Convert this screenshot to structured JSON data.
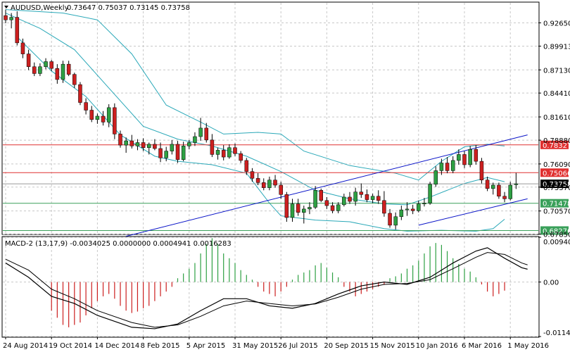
{
  "header": {
    "symbol": "AUDUSD,Weekly",
    "ohlc": "0.73647 0.75037 0.73145 0.73758",
    "macd_title": "MACD-2 (13,17,9) -0.0034025 0.0000000 0.0004941 0.0016283"
  },
  "colors": {
    "bull": "#2ea043",
    "bear": "#cc1f1f",
    "bands": "#2aa8b8",
    "channel": "#0a14c8",
    "resistance": "#e03030",
    "support": "#3aa05a",
    "grid": "#c8c8c8"
  },
  "chart_data": [
    {
      "type": "candlestick",
      "title": "AUDUSD,Weekly",
      "ylim": [
        0.679,
        0.95
      ],
      "y_ticks": [
        "0.92650",
        "0.89913",
        "0.87130",
        "0.84410",
        "0.81610",
        "0.78880",
        "0.76090",
        "0.73370",
        "0.70570",
        "0.67850"
      ],
      "x_ticks": [
        "24 Aug 2014",
        "19 Oct 2014",
        "14 Dec 2014",
        "8 Feb 2015",
        "5 Apr 2015",
        "31 May 2015",
        "26 Jul 2015",
        "20 Sep 2015",
        "15 Nov 2015",
        "10 Jan 2016",
        "6 Mar 2016",
        "1 May 2016"
      ],
      "candles": [
        {
          "o": 0.935,
          "h": 0.942,
          "l": 0.926,
          "c": 0.93
        },
        {
          "o": 0.93,
          "h": 0.938,
          "l": 0.92,
          "c": 0.933
        },
        {
          "o": 0.933,
          "h": 0.94,
          "l": 0.9,
          "c": 0.903
        },
        {
          "o": 0.903,
          "h": 0.908,
          "l": 0.885,
          "c": 0.89
        },
        {
          "o": 0.89,
          "h": 0.895,
          "l": 0.871,
          "c": 0.875
        },
        {
          "o": 0.875,
          "h": 0.88,
          "l": 0.864,
          "c": 0.867
        },
        {
          "o": 0.867,
          "h": 0.879,
          "l": 0.864,
          "c": 0.875
        },
        {
          "o": 0.875,
          "h": 0.885,
          "l": 0.872,
          "c": 0.881
        },
        {
          "o": 0.881,
          "h": 0.883,
          "l": 0.87,
          "c": 0.873
        },
        {
          "o": 0.873,
          "h": 0.878,
          "l": 0.855,
          "c": 0.86
        },
        {
          "o": 0.86,
          "h": 0.882,
          "l": 0.856,
          "c": 0.878
        },
        {
          "o": 0.878,
          "h": 0.882,
          "l": 0.864,
          "c": 0.866
        },
        {
          "o": 0.866,
          "h": 0.868,
          "l": 0.85,
          "c": 0.854
        },
        {
          "o": 0.854,
          "h": 0.857,
          "l": 0.83,
          "c": 0.833
        },
        {
          "o": 0.833,
          "h": 0.838,
          "l": 0.819,
          "c": 0.824
        },
        {
          "o": 0.824,
          "h": 0.829,
          "l": 0.81,
          "c": 0.813
        },
        {
          "o": 0.813,
          "h": 0.82,
          "l": 0.808,
          "c": 0.817
        },
        {
          "o": 0.817,
          "h": 0.823,
          "l": 0.806,
          "c": 0.81
        },
        {
          "o": 0.81,
          "h": 0.831,
          "l": 0.804,
          "c": 0.827
        },
        {
          "o": 0.827,
          "h": 0.832,
          "l": 0.79,
          "c": 0.796
        },
        {
          "o": 0.796,
          "h": 0.8,
          "l": 0.78,
          "c": 0.783
        },
        {
          "o": 0.783,
          "h": 0.792,
          "l": 0.774,
          "c": 0.788
        },
        {
          "o": 0.788,
          "h": 0.795,
          "l": 0.779,
          "c": 0.782
        },
        {
          "o": 0.782,
          "h": 0.79,
          "l": 0.777,
          "c": 0.786
        },
        {
          "o": 0.786,
          "h": 0.791,
          "l": 0.776,
          "c": 0.78
        },
        {
          "o": 0.78,
          "h": 0.786,
          "l": 0.772,
          "c": 0.784
        },
        {
          "o": 0.784,
          "h": 0.79,
          "l": 0.777,
          "c": 0.779
        },
        {
          "o": 0.779,
          "h": 0.786,
          "l": 0.763,
          "c": 0.768
        },
        {
          "o": 0.768,
          "h": 0.781,
          "l": 0.764,
          "c": 0.776
        },
        {
          "o": 0.776,
          "h": 0.789,
          "l": 0.772,
          "c": 0.784
        },
        {
          "o": 0.784,
          "h": 0.788,
          "l": 0.762,
          "c": 0.766
        },
        {
          "o": 0.766,
          "h": 0.787,
          "l": 0.764,
          "c": 0.782
        },
        {
          "o": 0.782,
          "h": 0.789,
          "l": 0.778,
          "c": 0.786
        },
        {
          "o": 0.786,
          "h": 0.798,
          "l": 0.782,
          "c": 0.793
        },
        {
          "o": 0.793,
          "h": 0.815,
          "l": 0.788,
          "c": 0.803
        },
        {
          "o": 0.803,
          "h": 0.809,
          "l": 0.786,
          "c": 0.789
        },
        {
          "o": 0.789,
          "h": 0.796,
          "l": 0.769,
          "c": 0.772
        },
        {
          "o": 0.772,
          "h": 0.78,
          "l": 0.766,
          "c": 0.777
        },
        {
          "o": 0.777,
          "h": 0.783,
          "l": 0.765,
          "c": 0.769
        },
        {
          "o": 0.769,
          "h": 0.784,
          "l": 0.767,
          "c": 0.78
        },
        {
          "o": 0.78,
          "h": 0.785,
          "l": 0.77,
          "c": 0.773
        },
        {
          "o": 0.773,
          "h": 0.776,
          "l": 0.762,
          "c": 0.765
        },
        {
          "o": 0.765,
          "h": 0.768,
          "l": 0.748,
          "c": 0.752
        },
        {
          "o": 0.752,
          "h": 0.756,
          "l": 0.74,
          "c": 0.744
        },
        {
          "o": 0.744,
          "h": 0.75,
          "l": 0.736,
          "c": 0.739
        },
        {
          "o": 0.739,
          "h": 0.744,
          "l": 0.73,
          "c": 0.733
        },
        {
          "o": 0.733,
          "h": 0.746,
          "l": 0.73,
          "c": 0.742
        },
        {
          "o": 0.742,
          "h": 0.748,
          "l": 0.733,
          "c": 0.736
        },
        {
          "o": 0.736,
          "h": 0.74,
          "l": 0.72,
          "c": 0.725
        },
        {
          "o": 0.725,
          "h": 0.728,
          "l": 0.693,
          "c": 0.698
        },
        {
          "o": 0.698,
          "h": 0.72,
          "l": 0.693,
          "c": 0.714
        },
        {
          "o": 0.714,
          "h": 0.72,
          "l": 0.7,
          "c": 0.704
        },
        {
          "o": 0.704,
          "h": 0.712,
          "l": 0.691,
          "c": 0.708
        },
        {
          "o": 0.708,
          "h": 0.716,
          "l": 0.702,
          "c": 0.71
        },
        {
          "o": 0.71,
          "h": 0.735,
          "l": 0.708,
          "c": 0.73
        },
        {
          "o": 0.73,
          "h": 0.732,
          "l": 0.716,
          "c": 0.718
        },
        {
          "o": 0.718,
          "h": 0.722,
          "l": 0.708,
          "c": 0.712
        },
        {
          "o": 0.712,
          "h": 0.716,
          "l": 0.703,
          "c": 0.706
        },
        {
          "o": 0.706,
          "h": 0.716,
          "l": 0.703,
          "c": 0.713
        },
        {
          "o": 0.713,
          "h": 0.726,
          "l": 0.711,
          "c": 0.722
        },
        {
          "o": 0.722,
          "h": 0.728,
          "l": 0.714,
          "c": 0.717
        },
        {
          "o": 0.717,
          "h": 0.733,
          "l": 0.712,
          "c": 0.728
        },
        {
          "o": 0.728,
          "h": 0.738,
          "l": 0.721,
          "c": 0.725
        },
        {
          "o": 0.725,
          "h": 0.731,
          "l": 0.716,
          "c": 0.719
        },
        {
          "o": 0.719,
          "h": 0.726,
          "l": 0.715,
          "c": 0.723
        },
        {
          "o": 0.723,
          "h": 0.73,
          "l": 0.714,
          "c": 0.718
        },
        {
          "o": 0.718,
          "h": 0.729,
          "l": 0.699,
          "c": 0.703
        },
        {
          "o": 0.703,
          "h": 0.708,
          "l": 0.686,
          "c": 0.689
        },
        {
          "o": 0.689,
          "h": 0.704,
          "l": 0.684,
          "c": 0.699
        },
        {
          "o": 0.699,
          "h": 0.712,
          "l": 0.695,
          "c": 0.707
        },
        {
          "o": 0.707,
          "h": 0.716,
          "l": 0.7,
          "c": 0.708
        },
        {
          "o": 0.708,
          "h": 0.713,
          "l": 0.702,
          "c": 0.706
        },
        {
          "o": 0.706,
          "h": 0.718,
          "l": 0.704,
          "c": 0.714
        },
        {
          "o": 0.714,
          "h": 0.721,
          "l": 0.711,
          "c": 0.715
        },
        {
          "o": 0.715,
          "h": 0.74,
          "l": 0.713,
          "c": 0.737
        },
        {
          "o": 0.737,
          "h": 0.758,
          "l": 0.734,
          "c": 0.753
        },
        {
          "o": 0.753,
          "h": 0.767,
          "l": 0.748,
          "c": 0.762
        },
        {
          "o": 0.762,
          "h": 0.769,
          "l": 0.75,
          "c": 0.753
        },
        {
          "o": 0.753,
          "h": 0.77,
          "l": 0.75,
          "c": 0.765
        },
        {
          "o": 0.765,
          "h": 0.778,
          "l": 0.76,
          "c": 0.772
        },
        {
          "o": 0.772,
          "h": 0.776,
          "l": 0.756,
          "c": 0.76
        },
        {
          "o": 0.76,
          "h": 0.782,
          "l": 0.757,
          "c": 0.778
        },
        {
          "o": 0.778,
          "h": 0.783,
          "l": 0.76,
          "c": 0.764
        },
        {
          "o": 0.764,
          "h": 0.768,
          "l": 0.738,
          "c": 0.742
        },
        {
          "o": 0.742,
          "h": 0.746,
          "l": 0.729,
          "c": 0.732
        },
        {
          "o": 0.732,
          "h": 0.739,
          "l": 0.725,
          "c": 0.736
        },
        {
          "o": 0.736,
          "h": 0.739,
          "l": 0.72,
          "c": 0.723
        },
        {
          "o": 0.723,
          "h": 0.728,
          "l": 0.716,
          "c": 0.72
        },
        {
          "o": 0.72,
          "h": 0.74,
          "l": 0.718,
          "c": 0.736
        },
        {
          "o": 0.7365,
          "h": 0.7504,
          "l": 0.7315,
          "c": 0.7376
        }
      ],
      "bollinger": {
        "upper": [
          [
            0,
            0.942
          ],
          [
            10,
            0.938
          ],
          [
            16,
            0.93
          ],
          [
            22,
            0.89
          ],
          [
            28,
            0.83
          ],
          [
            34,
            0.81
          ],
          [
            38,
            0.796
          ],
          [
            44,
            0.798
          ],
          [
            48,
            0.796
          ],
          [
            52,
            0.776
          ],
          [
            60,
            0.759
          ],
          [
            68,
            0.75
          ],
          [
            72,
            0.742
          ],
          [
            76,
            0.764
          ],
          [
            80,
            0.781
          ],
          [
            84,
            0.784
          ],
          [
            87,
            0.782
          ]
        ],
        "middle": [
          [
            0,
            0.938
          ],
          [
            6,
            0.92
          ],
          [
            12,
            0.895
          ],
          [
            18,
            0.85
          ],
          [
            24,
            0.805
          ],
          [
            30,
            0.79
          ],
          [
            36,
            0.782
          ],
          [
            42,
            0.77
          ],
          [
            48,
            0.752
          ],
          [
            54,
            0.73
          ],
          [
            60,
            0.72
          ],
          [
            66,
            0.714
          ],
          [
            70,
            0.713
          ],
          [
            74,
            0.722
          ],
          [
            80,
            0.738
          ],
          [
            84,
            0.745
          ],
          [
            87,
            0.74
          ]
        ],
        "lower": [
          [
            2,
            0.91
          ],
          [
            8,
            0.87
          ],
          [
            14,
            0.84
          ],
          [
            20,
            0.795
          ],
          [
            26,
            0.77
          ],
          [
            30,
            0.764
          ],
          [
            36,
            0.76
          ],
          [
            42,
            0.75
          ],
          [
            46,
            0.715
          ],
          [
            48,
            0.7
          ],
          [
            54,
            0.695
          ],
          [
            60,
            0.693
          ],
          [
            66,
            0.685
          ],
          [
            70,
            0.682
          ],
          [
            76,
            0.683
          ],
          [
            82,
            0.682
          ],
          [
            85,
            0.685
          ],
          [
            87,
            0.696
          ]
        ]
      },
      "channel_lines": [
        {
          "from": [
            21,
            0.676
          ],
          "to": [
            91,
            0.795
          ]
        },
        {
          "from": [
            72,
            0.689
          ],
          "to": [
            91,
            0.72
          ]
        }
      ],
      "resistance_levels": [
        "0.78327",
        "0.75066"
      ],
      "support_levels": [
        "0.71478",
        "0.68276"
      ],
      "resistance_values": [
        0.78327,
        0.75066
      ],
      "support_values": [
        0.71478,
        0.68276
      ],
      "current_price": "0.73758",
      "current_value": 0.73758
    },
    {
      "type": "bar",
      "title": "MACD-2 (13,17,9) -0.0034025 0.0000000 0.0004941 0.0016283",
      "ylim": [
        -0.011437,
        0.009404
      ],
      "y_ticks": [
        "0.009404",
        "0.00",
        "-0.011437"
      ],
      "histogram": [
        -0.006,
        -0.0075,
        -0.009,
        -0.0095,
        -0.009,
        -0.0085,
        -0.007,
        -0.0055,
        -0.004,
        -0.003,
        -0.0025,
        -0.0035,
        -0.005,
        -0.006,
        -0.0065,
        -0.0062,
        -0.0055,
        -0.005,
        -0.004,
        -0.003,
        -0.002,
        -0.001,
        0.0008,
        0.0018,
        0.0028,
        0.004,
        0.006,
        0.008,
        0.0092,
        0.008,
        0.006,
        0.005,
        0.004,
        0.0025,
        0.0015,
        0.0005,
        -0.001,
        -0.002,
        -0.0025,
        -0.003,
        -0.002,
        -0.001,
        0.0005,
        0.0015,
        0.002,
        0.0025,
        0.0035,
        0.004,
        0.003,
        0.002,
        0.001,
        -0.001,
        -0.002,
        -0.003,
        -0.0025,
        -0.002,
        -0.0015,
        -0.001,
        -0.0006,
        0.0008,
        0.0012,
        0.0018,
        0.0028,
        0.0035,
        0.0045,
        0.006,
        0.0075,
        0.0082,
        0.0078,
        0.0065,
        0.005,
        0.0038,
        0.0028,
        0.0022,
        0.001,
        -0.0005,
        -0.002,
        -0.003,
        -0.0025,
        -0.0018
      ],
      "main_line": [
        [
          0,
          0.004
        ],
        [
          4,
          0.001
        ],
        [
          8,
          -0.003
        ],
        [
          12,
          -0.0045
        ],
        [
          16,
          -0.007
        ],
        [
          22,
          -0.0095
        ],
        [
          26,
          -0.0098
        ],
        [
          30,
          -0.0088
        ],
        [
          34,
          -0.006
        ],
        [
          38,
          -0.0035
        ],
        [
          42,
          -0.0035
        ],
        [
          46,
          -0.005
        ],
        [
          50,
          -0.0055
        ],
        [
          54,
          -0.0045
        ],
        [
          58,
          -0.0025
        ],
        [
          62,
          -0.0008
        ],
        [
          66,
          0.0
        ],
        [
          70,
          -0.0005
        ],
        [
          74,
          0.001
        ],
        [
          78,
          0.004
        ],
        [
          82,
          0.0065
        ],
        [
          84,
          0.0072
        ],
        [
          87,
          0.005
        ],
        [
          90,
          0.003
        ],
        [
          91,
          0.0027
        ]
      ],
      "signal_line": [
        [
          0,
          0.0048
        ],
        [
          4,
          0.0025
        ],
        [
          8,
          -0.0015
        ],
        [
          12,
          -0.0035
        ],
        [
          16,
          -0.006
        ],
        [
          22,
          -0.0085
        ],
        [
          26,
          -0.0095
        ],
        [
          30,
          -0.009
        ],
        [
          34,
          -0.0072
        ],
        [
          38,
          -0.005
        ],
        [
          42,
          -0.004
        ],
        [
          46,
          -0.0045
        ],
        [
          50,
          -0.005
        ],
        [
          54,
          -0.0046
        ],
        [
          58,
          -0.0032
        ],
        [
          62,
          -0.0015
        ],
        [
          66,
          -0.0005
        ],
        [
          70,
          -0.0003
        ],
        [
          74,
          0.0005
        ],
        [
          78,
          0.0028
        ],
        [
          82,
          0.0052
        ],
        [
          84,
          0.0062
        ],
        [
          87,
          0.0058
        ],
        [
          90,
          0.004
        ],
        [
          91,
          0.0036
        ]
      ]
    }
  ]
}
